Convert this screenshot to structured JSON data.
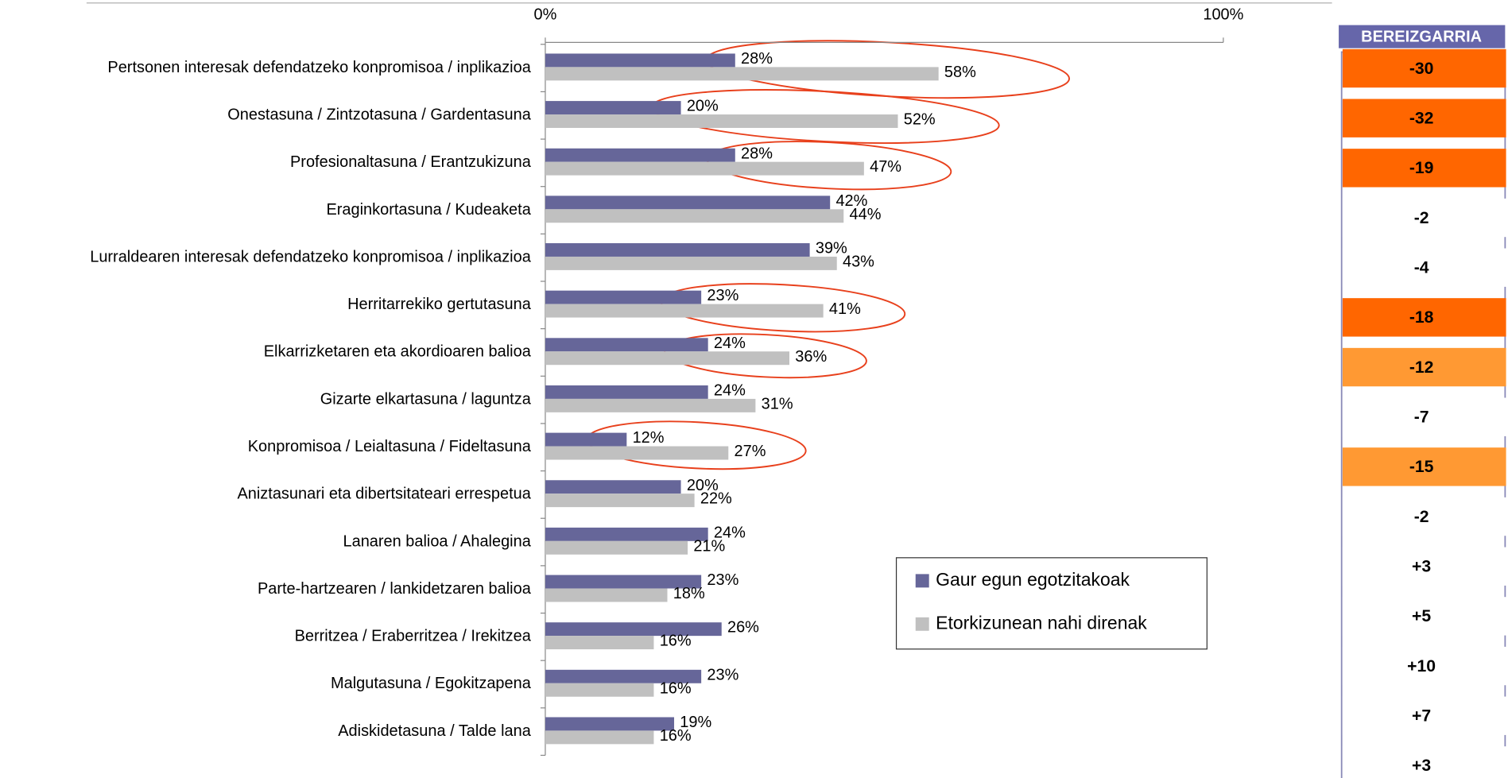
{
  "chart_data": {
    "type": "bar",
    "orientation": "horizontal",
    "categories": [
      "Pertsonen interesak defendatzeko konpromisoa / inplikazioa",
      "Onestasuna / Zintzotasuna / Gardentasuna",
      "Profesionaltasuna / Erantzukizuna",
      "Eraginkortasuna / Kudeaketa",
      "Lurraldearen interesak defendatzeko konpromisoa / inplikazioa",
      "Herritarrekiko gertutasuna",
      "Elkarrizketaren eta akordioaren balioa",
      "Gizarte elkartasuna / laguntza",
      "Konpromisoa / Leialtasuna / Fideltasuna",
      "Aniztasunari eta dibertsitateari errespetua",
      "Lanaren balioa / Ahalegina",
      "Parte-hartzearen / lankidetzaren balioa",
      "Berritzea / Eraberritzea / Irekitzea",
      "Malgutasuna / Egokitzapena",
      "Adiskidetasuna / Talde lana"
    ],
    "series": [
      {
        "name": "Gaur egun egotzitakoak",
        "color": "#666699",
        "values": [
          28,
          20,
          28,
          42,
          39,
          23,
          24,
          24,
          12,
          20,
          24,
          23,
          26,
          23,
          19
        ],
        "value_labels": [
          "28%",
          "20%",
          "28%",
          "42%",
          "39%",
          "23%",
          "24%",
          "24%",
          "12%",
          "20%",
          "24%",
          "23%",
          "26%",
          "23%",
          "19%"
        ]
      },
      {
        "name": "Etorkizunean nahi direnak",
        "color": "#c0c0c0",
        "values": [
          58,
          52,
          47,
          44,
          43,
          41,
          36,
          31,
          27,
          22,
          21,
          18,
          16,
          16,
          16
        ],
        "value_labels": [
          "58%",
          "52%",
          "47%",
          "44%",
          "43%",
          "41%",
          "36%",
          "31%",
          "27%",
          "22%",
          "21%",
          "18%",
          "16%",
          "16%",
          "16%"
        ]
      }
    ],
    "xlim": [
      0,
      100
    ],
    "xticks": [
      {
        "value": 0,
        "label": "0%"
      },
      {
        "value": 100,
        "label": "100%"
      }
    ],
    "legend": "lower-right",
    "difference": {
      "title": "BEREIZGARRIA",
      "values": [
        -30,
        -32,
        -19,
        -2,
        -4,
        -18,
        -12,
        -7,
        -15,
        -2,
        3,
        5,
        10,
        7,
        3
      ],
      "value_labels": [
        "-30",
        "-32",
        "-19",
        "-2",
        "-4",
        "-18",
        "-12",
        "-7",
        "-15",
        "-2",
        "+3",
        "+5",
        "+10",
        "+7",
        "+3"
      ],
      "colors": [
        "#ff6600",
        "#ff6600",
        "#ff6600",
        "#ffffff",
        "#ffffff",
        "#ff6600",
        "#ff9933",
        "#ffffff",
        "#ff9933",
        "#ffffff",
        "#ffffff",
        "#ffffff",
        "#ffffff",
        "#ffffff",
        "#ffffff"
      ]
    }
  }
}
